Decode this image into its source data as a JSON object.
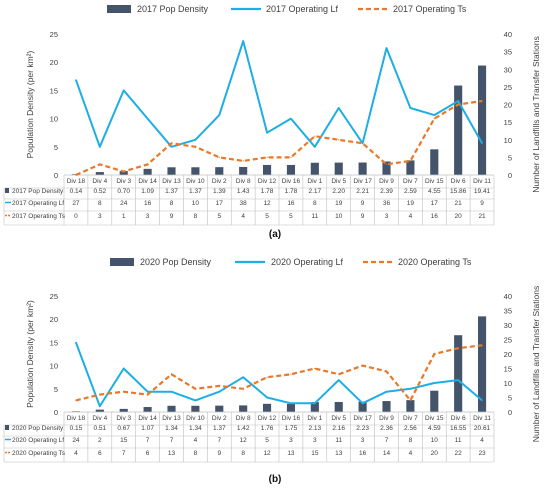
{
  "chart_data": [
    {
      "type": "bar+line",
      "caption": "(a)",
      "categories": [
        "Div 18",
        "Div 4",
        "Div 3",
        "Div 14",
        "Div 13",
        "Div 10",
        "Div 2",
        "Div 8",
        "Div 12",
        "Div 16",
        "Div 1",
        "Div 5",
        "Div 17",
        "Div 9",
        "Div 7",
        "Div 15",
        "Div 6",
        "Div 11"
      ],
      "ylabel": "Population Density (per km²)",
      "y2label": "Number of Landfills and Transfer Stations",
      "ylim": [
        0,
        25
      ],
      "yticks": [
        "0",
        "5",
        "10",
        "15",
        "20",
        "25"
      ],
      "y2lim": [
        0,
        40
      ],
      "y2ticks": [
        "0",
        "5",
        "10",
        "15",
        "20",
        "25",
        "30",
        "35",
        "40"
      ],
      "series": [
        {
          "name": "2017 Pop Density",
          "kind": "bar",
          "axis": "left",
          "color": "#44546a",
          "values": [
            0.14,
            0.52,
            0.7,
            1.09,
            1.37,
            1.37,
            1.39,
            1.43,
            1.78,
            1.78,
            2.17,
            2.2,
            2.21,
            2.39,
            2.59,
            4.55,
            15.86,
            19.41
          ],
          "labels": [
            "0.14",
            "0.52",
            "0.70",
            "1.09",
            "1.37",
            "1.37",
            "1.39",
            "1.43",
            "1.78",
            "1.78",
            "2.17",
            "2.20",
            "2.21",
            "2.39",
            "2.59",
            "4.55",
            "15.86",
            "19.41"
          ]
        },
        {
          "name": "2017 Operating Lf",
          "kind": "line",
          "axis": "right",
          "color": "#1eaee4",
          "values": [
            27,
            8,
            24,
            16,
            8,
            10,
            17,
            38,
            12,
            16,
            8,
            19,
            9,
            36,
            19,
            17,
            21,
            9
          ],
          "labels": [
            "27",
            "8",
            "24",
            "16",
            "8",
            "10",
            "17",
            "38",
            "12",
            "16",
            "8",
            "19",
            "9",
            "36",
            "19",
            "17",
            "21",
            "9"
          ]
        },
        {
          "name": "2017 Operating Ts",
          "kind": "dashed-line",
          "axis": "right",
          "color": "#e9782a",
          "values": [
            0,
            3,
            1,
            3,
            9,
            8,
            5,
            4,
            5,
            5,
            11,
            10,
            9,
            3,
            4,
            16,
            20,
            21
          ],
          "labels": [
            "0",
            "3",
            "1",
            "3",
            "9",
            "8",
            "5",
            "4",
            "5",
            "5",
            "11",
            "10",
            "9",
            "3",
            "4",
            "16",
            "20",
            "21"
          ]
        }
      ]
    },
    {
      "type": "bar+line",
      "caption": "(b)",
      "categories": [
        "Div 18",
        "Div 4",
        "Div 3",
        "Div 14",
        "Div 13",
        "Div 10",
        "Div 2",
        "Div 8",
        "Div 12",
        "Div 16",
        "Div 1",
        "Div 5",
        "Div 17",
        "Div 9",
        "Div 7",
        "Div 15",
        "Div 6",
        "Div 11"
      ],
      "ylabel": "Population Density (per km²)",
      "y2label": "Number of Landfills and Transfer Stations",
      "ylim": [
        0,
        25
      ],
      "yticks": [
        "0",
        "5",
        "10",
        "15",
        "20",
        "25"
      ],
      "y2lim": [
        0,
        40
      ],
      "y2ticks": [
        "0",
        "5",
        "10",
        "15",
        "20",
        "25",
        "30",
        "35",
        "40"
      ],
      "series": [
        {
          "name": "2020 Pop Density",
          "kind": "bar",
          "axis": "left",
          "color": "#44546a",
          "values": [
            0.15,
            0.51,
            0.67,
            1.07,
            1.34,
            1.34,
            1.37,
            1.42,
            1.76,
            1.75,
            2.13,
            2.16,
            2.23,
            2.36,
            2.56,
            4.59,
            16.55,
            20.61
          ],
          "labels": [
            "0.15",
            "0.51",
            "0.67",
            "1.07",
            "1.34",
            "1.34",
            "1.37",
            "1.42",
            "1.76",
            "1.75",
            "2.13",
            "2.16",
            "2.23",
            "2.36",
            "2.56",
            "4.59",
            "16.55",
            "20.61"
          ]
        },
        {
          "name": "2020 Operating Lf",
          "kind": "line",
          "axis": "right",
          "color": "#1eaee4",
          "values": [
            24,
            2,
            15,
            7,
            7,
            4,
            7,
            12,
            5,
            3,
            3,
            11,
            3,
            7,
            8,
            10,
            11,
            4
          ],
          "labels": [
            "24",
            "2",
            "15",
            "7",
            "7",
            "4",
            "7",
            "12",
            "5",
            "3",
            "3",
            "11",
            "3",
            "7",
            "8",
            "10",
            "11",
            "4"
          ]
        },
        {
          "name": "2020 Operating Ts",
          "kind": "dashed-line",
          "axis": "right",
          "color": "#e9782a",
          "values": [
            4,
            6,
            7,
            6,
            13,
            8,
            9,
            8,
            12,
            13,
            15,
            13,
            16,
            14,
            4,
            20,
            22,
            23
          ],
          "labels": [
            "4",
            "6",
            "7",
            "6",
            "13",
            "8",
            "9",
            "8",
            "12",
            "13",
            "15",
            "13",
            "16",
            "14",
            "4",
            "20",
            "22",
            "23"
          ]
        }
      ]
    }
  ]
}
